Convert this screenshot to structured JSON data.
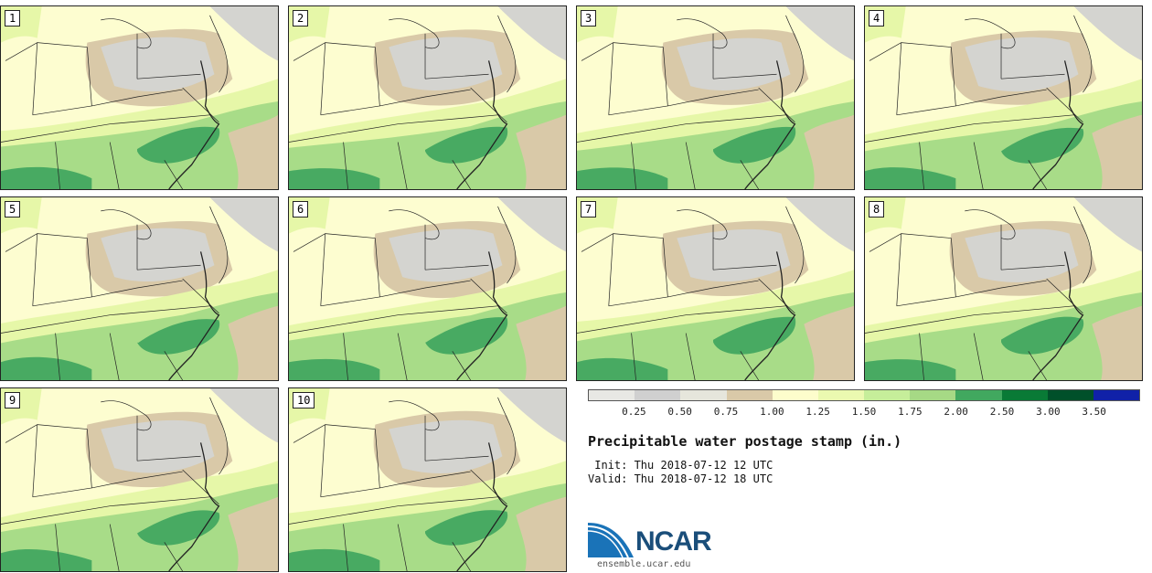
{
  "stamps": [
    {
      "label": "1"
    },
    {
      "label": "2"
    },
    {
      "label": "3"
    },
    {
      "label": "4"
    },
    {
      "label": "5"
    },
    {
      "label": "6"
    },
    {
      "label": "7"
    },
    {
      "label": "8"
    },
    {
      "label": "9"
    },
    {
      "label": "10"
    }
  ],
  "legend": {
    "colors": [
      "#e8e8e4",
      "#d0d0d0",
      "#e6e6dc",
      "#d9c9a8",
      "#fdfdcc",
      "#ebf9b0",
      "#c6ee9a",
      "#a6d985",
      "#41a85f",
      "#097a36",
      "#00502a",
      "#1021a8"
    ],
    "ticks": [
      "0.25",
      "0.50",
      "0.75",
      "1.00",
      "1.25",
      "1.50",
      "1.75",
      "2.00",
      "2.50",
      "3.00",
      "3.50"
    ]
  },
  "title": "Precipitable water postage stamp (in.)",
  "init_line": " Init: Thu 2018-07-12 12 UTC",
  "valid_line": "Valid: Thu 2018-07-12 18 UTC",
  "logo": {
    "text": "NCAR",
    "url": "ensemble.ucar.edu"
  },
  "map_colors": {
    "base": "#fdfdd0",
    "tan": "#d9c9a8",
    "gray": "#d4d4d0",
    "light_green": "#e6f7a8",
    "mid_green": "#a8dc88",
    "dark_green": "#48aa62",
    "darker_green": "#2e8c4c",
    "border": "#222222"
  }
}
